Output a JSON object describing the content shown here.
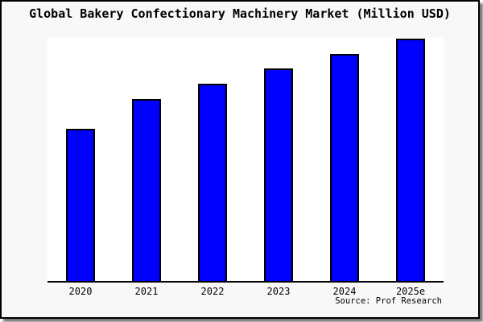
{
  "window": {
    "title": "Global Bakery Confectionary Machinery Market (Million USD)"
  },
  "source": {
    "label": "Source: Prof Research"
  },
  "colors": {
    "bar_fill": "#0000ff",
    "bar_border": "#000000",
    "plot_background": "#ffffff",
    "page_background": "#f8f8f8",
    "frame_border": "#000000"
  },
  "chart_data": {
    "type": "bar",
    "title": "Global Bakery Confectionary Machinery Market (Million USD)",
    "categories": [
      "2020",
      "2021",
      "2022",
      "2023",
      "2024",
      "2025e"
    ],
    "values": [
      62.8,
      75.1,
      81.4,
      87.7,
      93.7,
      100
    ],
    "values_note": "No y-axis scale or data labels are shown in the image; values are relative bar heights normalized so 2025e = 100.",
    "xlabel": "",
    "ylabel": "",
    "ylim": [
      0,
      101
    ],
    "grid": false,
    "legend": false,
    "bar_color": "#0000ff",
    "bar_border_color": "#000000"
  }
}
